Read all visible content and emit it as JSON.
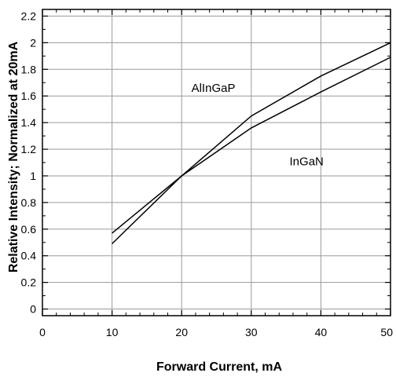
{
  "chart_data": {
    "type": "line",
    "title": "",
    "xlabel": "Forward Current, mA",
    "ylabel": "Relative Intensity; Normalized at 20mA",
    "xlim": [
      0,
      50
    ],
    "ylim": [
      -0.05,
      2.25
    ],
    "x_ticks": [
      0,
      10,
      20,
      30,
      40,
      50
    ],
    "x_tick_labels": [
      "0",
      "10",
      "20",
      "30",
      "40",
      "50"
    ],
    "y_ticks": [
      0,
      0.2,
      0.4,
      0.6,
      0.8,
      1,
      1.2,
      1.4,
      1.6,
      1.8,
      2,
      2.2
    ],
    "y_tick_labels": [
      "0",
      "0.2",
      "0.4",
      "0.6",
      "0.8",
      "1",
      "1.2",
      "1.4",
      "1.6",
      "1.8",
      "2",
      "2.2"
    ],
    "grid": true,
    "line_color": "#000000",
    "grid_color": "#9a9a9a",
    "series": [
      {
        "name": "AlInGaP",
        "x": [
          10,
          20,
          30,
          40,
          50
        ],
        "y": [
          0.49,
          1.0,
          1.45,
          1.75,
          2.0
        ]
      },
      {
        "name": "InGaN",
        "x": [
          10,
          20,
          30,
          40,
          50
        ],
        "y": [
          0.57,
          1.0,
          1.36,
          1.63,
          1.89
        ]
      }
    ],
    "annotations": [
      {
        "text": "AlInGaP",
        "x": 21.4,
        "y": 1.63
      },
      {
        "text": "InGaN",
        "x": 35.5,
        "y": 1.08
      }
    ]
  }
}
